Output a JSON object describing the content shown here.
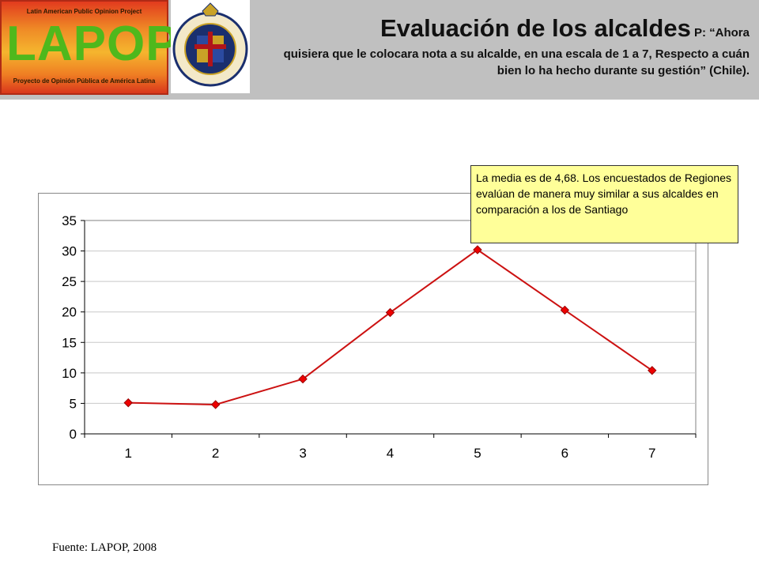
{
  "header": {
    "logo_top": "Latin American Public Opinion Project",
    "logo_word": "LAPOP",
    "logo_bottom": "Proyecto de Opinión Pública de América Latina",
    "seal_text": "PONTIFICIA UNIVERSIDAD CATOLICA DE CHILE",
    "title": "Evaluación de los alcaldes",
    "question_prefix": " P: “Ahora",
    "question_rest": "quisiera que le colocara nota a su alcalde, en una escala de 1 a 7, Respecto a cuán bien lo ha hecho durante su gestión” (Chile).",
    "background_color": "#c0c0c0"
  },
  "chart_data": {
    "type": "line",
    "categories": [
      "1",
      "2",
      "3",
      "4",
      "5",
      "6",
      "7"
    ],
    "series": [
      {
        "values": [
          5.1,
          4.8,
          9.0,
          19.9,
          30.2,
          20.3,
          10.4
        ],
        "color": "#cc1111"
      }
    ],
    "yticks": [
      "0",
      "5",
      "10",
      "15",
      "20",
      "25",
      "30",
      "35"
    ],
    "ylim": [
      0,
      35
    ],
    "grid": true,
    "title": "",
    "xlabel": "",
    "ylabel": ""
  },
  "note": "La media es de 4,68. Los encuestados de  Regiones evalúan de manera muy similar a sus  alcaldes en comparación a los de Santiago",
  "source": "Fuente: LAPOP, 2008"
}
